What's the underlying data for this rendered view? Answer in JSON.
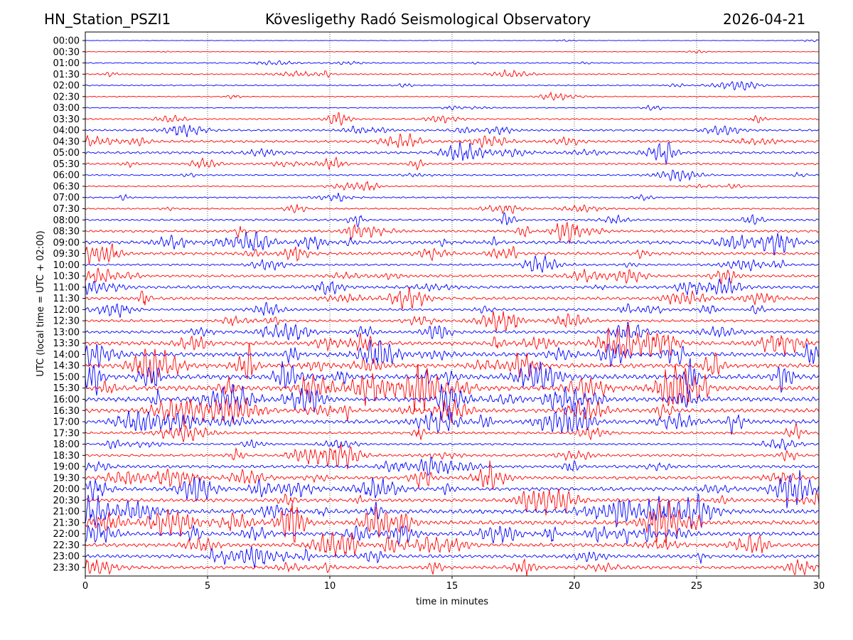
{
  "header": {
    "station": "HN_Station_PSZI1",
    "observatory": "Kövesligethy Radó Seismological Observatory",
    "date": "2026-04-21"
  },
  "chart_data": {
    "type": "line",
    "title": "Kövesligethy Radó Seismological Observatory",
    "xlabel": "time in minutes",
    "ylabel": "UTC (local time = UTC + 02:00)",
    "xlim": [
      0,
      30
    ],
    "x_ticks": [
      "0",
      "5",
      "10",
      "15",
      "20",
      "25",
      "30"
    ],
    "x_tick_values": [
      0,
      5,
      10,
      15,
      20,
      25,
      30
    ],
    "grid": "vertical dotted",
    "series_colors": [
      "#0000ff",
      "#ff0000"
    ],
    "rows": [
      "00:00",
      "00:30",
      "01:00",
      "01:30",
      "02:00",
      "02:30",
      "03:00",
      "03:30",
      "04:00",
      "04:30",
      "05:00",
      "05:30",
      "06:00",
      "06:30",
      "07:00",
      "07:30",
      "08:00",
      "08:30",
      "09:00",
      "09:30",
      "10:00",
      "10:30",
      "11:00",
      "11:30",
      "12:00",
      "12:30",
      "13:00",
      "13:30",
      "14:00",
      "14:30",
      "15:00",
      "15:30",
      "16:00",
      "16:30",
      "17:00",
      "17:30",
      "18:00",
      "18:30",
      "19:00",
      "19:30",
      "20:00",
      "20:30",
      "21:00",
      "21:30",
      "22:00",
      "22:30",
      "23:00",
      "23:30"
    ],
    "relative_activity": [
      0.2,
      0.2,
      0.5,
      0.5,
      0.5,
      0.4,
      0.4,
      0.6,
      0.8,
      1.0,
      1.0,
      0.8,
      0.6,
      0.5,
      0.6,
      0.6,
      0.8,
      1.0,
      1.4,
      1.2,
      0.8,
      1.0,
      1.2,
      1.2,
      1.0,
      1.0,
      1.2,
      1.6,
      1.8,
      1.8,
      2.0,
      2.0,
      1.8,
      1.6,
      1.6,
      1.0,
      0.8,
      1.0,
      1.2,
      1.3,
      1.5,
      1.4,
      1.8,
      1.8,
      1.6,
      1.5,
      1.4,
      1.3
    ]
  }
}
